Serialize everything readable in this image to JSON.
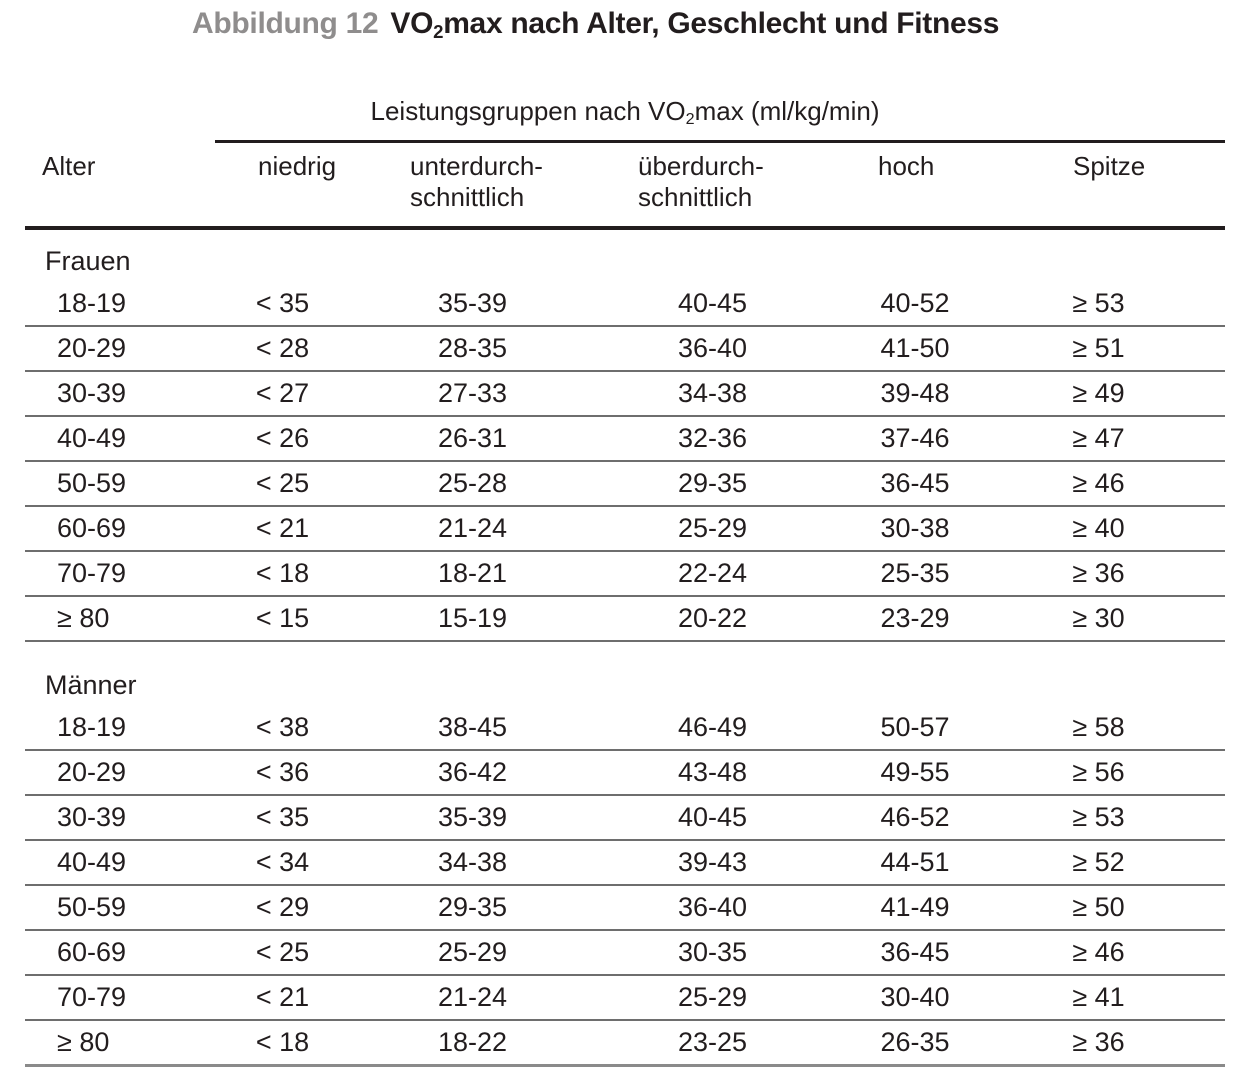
{
  "figure": {
    "label": "Abbildung 12",
    "title_pre": "VO",
    "title_sub": "2",
    "title_post": "max nach Alter, Geschlecht und Fitness"
  },
  "table": {
    "group_header_pre": "Leistungsgruppen nach VO",
    "group_header_sub": "2",
    "group_header_post": "max (ml/kg/min)",
    "columns": [
      {
        "line1": "Alter",
        "line2": ""
      },
      {
        "line1": "niedrig",
        "line2": ""
      },
      {
        "line1": "unterdurch-",
        "line2": "schnittlich"
      },
      {
        "line1": "überdurch-",
        "line2": "schnittlich"
      },
      {
        "line1": "hoch",
        "line2": ""
      },
      {
        "line1": "Spitze",
        "line2": ""
      }
    ],
    "sections": [
      {
        "label": "Frauen",
        "rows": [
          [
            "18-19",
            "< 35",
            "35-39",
            "40-45",
            "40-52",
            "≥ 53"
          ],
          [
            "20-29",
            "< 28",
            "28-35",
            "36-40",
            "41-50",
            "≥ 51"
          ],
          [
            "30-39",
            "< 27",
            "27-33",
            "34-38",
            "39-48",
            "≥ 49"
          ],
          [
            "40-49",
            "< 26",
            "26-31",
            "32-36",
            "37-46",
            "≥ 47"
          ],
          [
            "50-59",
            "< 25",
            "25-28",
            "29-35",
            "36-45",
            "≥ 46"
          ],
          [
            "60-69",
            "< 21",
            "21-24",
            "25-29",
            "30-38",
            "≥ 40"
          ],
          [
            "70-79",
            "< 18",
            "18-21",
            "22-24",
            "25-35",
            "≥ 36"
          ],
          [
            "≥ 80",
            "< 15",
            "15-19",
            "20-22",
            "23-29",
            "≥ 30"
          ]
        ]
      },
      {
        "label": "Männer",
        "rows": [
          [
            "18-19",
            "< 38",
            "38-45",
            "46-49",
            "50-57",
            "≥ 58"
          ],
          [
            "20-29",
            "< 36",
            "36-42",
            "43-48",
            "49-55",
            "≥ 56"
          ],
          [
            "30-39",
            "< 35",
            "35-39",
            "40-45",
            "46-52",
            "≥ 53"
          ],
          [
            "40-49",
            "< 34",
            "34-38",
            "39-43",
            "44-51",
            "≥ 52"
          ],
          [
            "50-59",
            "< 29",
            "29-35",
            "36-40",
            "41-49",
            "≥ 50"
          ],
          [
            "60-69",
            "< 25",
            "25-29",
            "30-35",
            "36-45",
            "≥ 46"
          ],
          [
            "70-79",
            "< 21",
            "21-24",
            "25-29",
            "30-40",
            "≥ 41"
          ],
          [
            "≥ 80",
            "< 18",
            "18-22",
            "23-25",
            "26-35",
            "≥ 36"
          ]
        ]
      }
    ]
  },
  "colors": {
    "figure_label": "#8f8d8d",
    "text": "#221d1e",
    "rule_heavy": "#221d1e",
    "rule_light": "#6e6e6e",
    "rule_bottom": "#8a8a8a"
  }
}
